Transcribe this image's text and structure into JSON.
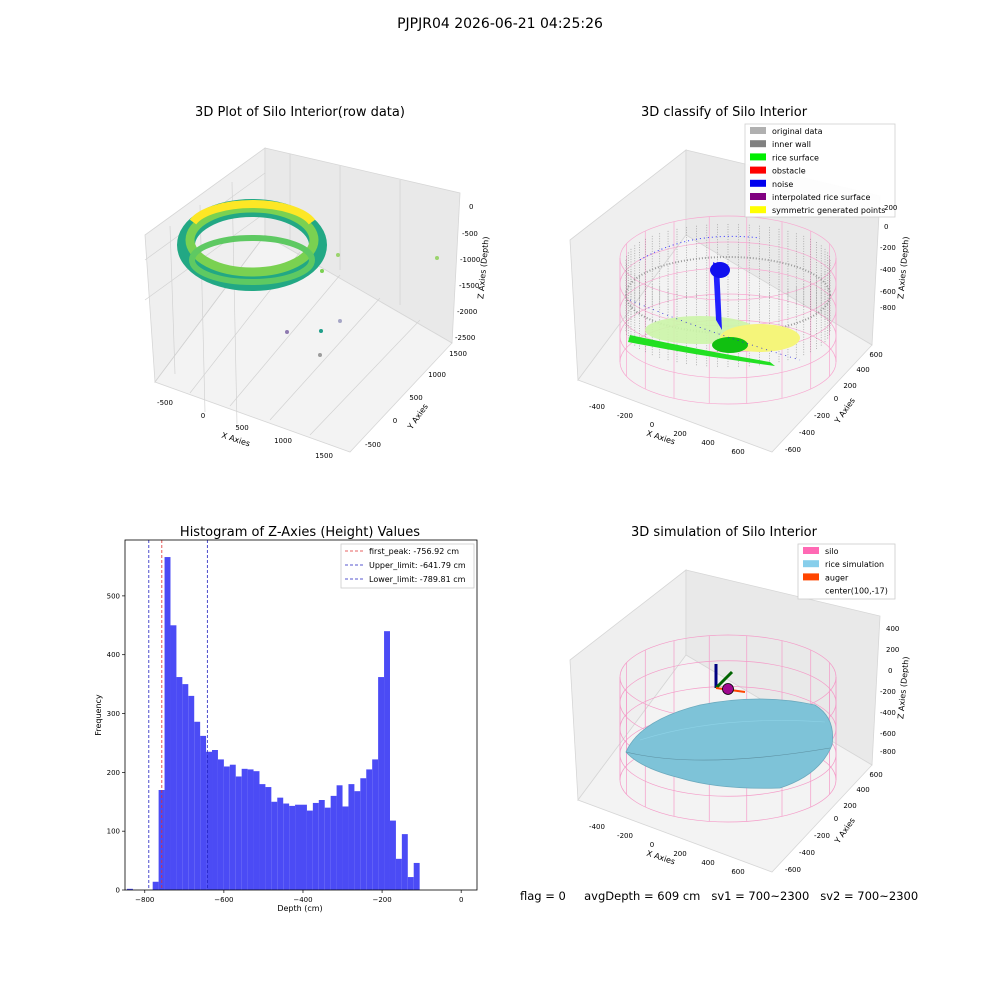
{
  "page": {
    "suptitle": "PJPJR04 2026-06-21 04:25:26",
    "footer": "flag = 0     avgDepth = 609 cm   sv1 = 700~2300   sv2 = 700~2300"
  },
  "colors": {
    "hist_bar": "#4b4bf5",
    "first_peak_line": "#e03030",
    "limit_line": "#2020c0",
    "silo": "#f45cb4",
    "rice": "#7ec7df",
    "auger": "#ff4500",
    "noise": "#0a0ad8",
    "inner_wall": "#808080",
    "rice_surface": "#00e000",
    "symmetric": "#ffff00"
  },
  "chart_data": [
    {
      "type": "scatter",
      "subtype": "3d",
      "title": "3D Plot of Silo Interior(row data)",
      "xlabel": "X Axies",
      "ylabel": "Y Axies",
      "zlabel": "Z Axies (Depth)",
      "x_ticks": [
        "-500",
        "0",
        "500",
        "1000",
        "1500"
      ],
      "y_ticks": [
        "-500",
        "0",
        "500",
        "1000",
        "1500"
      ],
      "z_ticks": [
        "0",
        "-500",
        "-1000",
        "-1500",
        "-2000",
        "-2500"
      ],
      "xlim": [
        -700,
        1600
      ],
      "ylim": [
        -700,
        1600
      ],
      "zlim": [
        -2600,
        0
      ],
      "colormap": "viridis"
    },
    {
      "type": "scatter",
      "subtype": "3d",
      "title": "3D classify of Silo Interior",
      "xlabel": "X Axies",
      "ylabel": "Y Axies",
      "zlabel": "Z Axies (Depth)",
      "x_ticks": [
        "-400",
        "-200",
        "0",
        "200",
        "400",
        "600"
      ],
      "y_ticks": [
        "-600",
        "-400",
        "-200",
        "0",
        "200",
        "400",
        "600"
      ],
      "z_ticks": [
        "200",
        "0",
        "-200",
        "-400",
        "-600",
        "-800"
      ],
      "legend_position": "top-right",
      "legend": [
        {
          "label": "original data",
          "color": "#b0b0b0"
        },
        {
          "label": "inner wall",
          "color": "#808080"
        },
        {
          "label": "rice surface",
          "color": "#00ee00"
        },
        {
          "label": "obstacle",
          "color": "#ff0000"
        },
        {
          "label": "noise",
          "color": "#0000ee"
        },
        {
          "label": "interpolated rice surface",
          "color": "#800080"
        },
        {
          "label": "symmetric generated points",
          "color": "#ffff00"
        }
      ]
    },
    {
      "type": "bar",
      "subtype": "histogram",
      "title": "Histogram of Z-Axies (Height) Values",
      "xlabel": "Depth (cm)",
      "ylabel": "Frequency",
      "xlim": [
        -850,
        40
      ],
      "ylim": [
        0,
        595
      ],
      "x_ticks": [
        -800,
        -600,
        -400,
        -200,
        0
      ],
      "y_ticks": [
        0,
        100,
        200,
        300,
        400,
        500
      ],
      "bin_width": 15,
      "bin_start": -765,
      "extra_bins": [
        {
          "x0": -845,
          "value": 2
        },
        {
          "x0": -780,
          "value": 14
        }
      ],
      "values": [
        170,
        566,
        450,
        362,
        350,
        330,
        286,
        262,
        235,
        238,
        222,
        210,
        213,
        193,
        206,
        205,
        202,
        180,
        175,
        150,
        157,
        147,
        143,
        145,
        145,
        135,
        148,
        153,
        140,
        160,
        178,
        142,
        180,
        168,
        190,
        205,
        222,
        362,
        440,
        118,
        53,
        95,
        22,
        46
      ],
      "vlines": [
        {
          "label": "first_peak: -756.92 cm",
          "x": -756.92,
          "color": "#e03030"
        },
        {
          "label": "Upper_limit: -641.79 cm",
          "x": -641.79,
          "color": "#2020c0"
        },
        {
          "label": "Lower_limit: -789.81 cm",
          "x": -789.81,
          "color": "#2020c0"
        }
      ],
      "legend_position": "top-right"
    },
    {
      "type": "area",
      "subtype": "3d surface",
      "title": "3D simulation of Silo Interior",
      "xlabel": "X Axies",
      "ylabel": "Y Axies",
      "zlabel": "Z Axies (Depth)",
      "x_ticks": [
        "-400",
        "-200",
        "0",
        "200",
        "400",
        "600"
      ],
      "y_ticks": [
        "-600",
        "-400",
        "-200",
        "0",
        "200",
        "400",
        "600"
      ],
      "z_ticks": [
        "400",
        "200",
        "0",
        "-200",
        "-400",
        "-600",
        "-800"
      ],
      "legend_position": "top-right",
      "legend": [
        {
          "label": "silo",
          "color": "#ff69b4"
        },
        {
          "label": "rice simulation",
          "color": "#87ceeb"
        },
        {
          "label": "auger",
          "color": "#ff4500"
        },
        {
          "label": "center(100,-17)",
          "color": ""
        }
      ]
    }
  ]
}
